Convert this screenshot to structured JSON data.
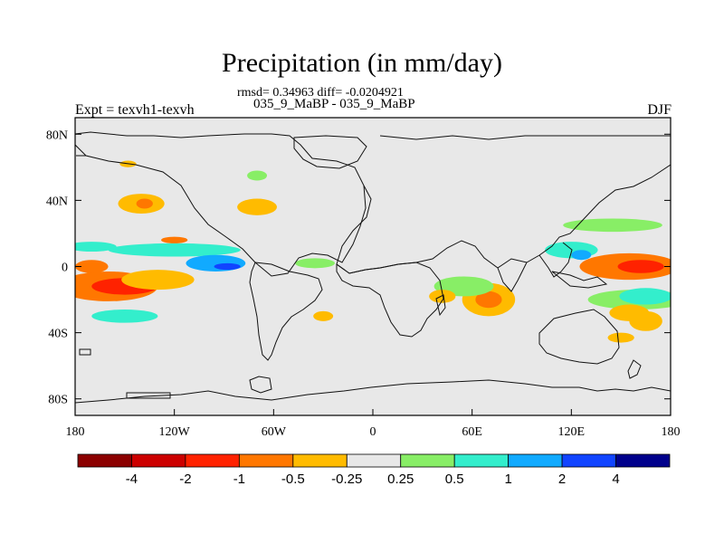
{
  "chart_data": {
    "type": "heatmap",
    "title": "Precipitation (in mm/day)",
    "stats_line": "rmsd= 0.34963 diff= -0.0204921",
    "subtitle": "035_9_MaBP - 035_9_MaBP",
    "left_label": "Expt = texvh1-texvh",
    "season": "DJF",
    "x_range": [
      -180,
      180
    ],
    "y_range": [
      -90,
      90
    ],
    "x_ticks": [
      {
        "value": -180,
        "label": "180"
      },
      {
        "value": -120,
        "label": "120W"
      },
      {
        "value": -60,
        "label": "60W"
      },
      {
        "value": 0,
        "label": "0"
      },
      {
        "value": 60,
        "label": "60E"
      },
      {
        "value": 120,
        "label": "120E"
      },
      {
        "value": 180,
        "label": "180"
      }
    ],
    "y_ticks": [
      {
        "value": 80,
        "label": "80N"
      },
      {
        "value": 40,
        "label": "40N"
      },
      {
        "value": 0,
        "label": "0"
      },
      {
        "value": -40,
        "label": "40S"
      },
      {
        "value": -80,
        "label": "80S"
      }
    ],
    "colorbar": {
      "colors": [
        "#8b0000",
        "#cc0000",
        "#ff2200",
        "#ff7700",
        "#ffbb00",
        "#e8e8e8",
        "#88ee66",
        "#33eecc",
        "#11aaff",
        "#1144ff",
        "#00008b"
      ],
      "labels": [
        "-4",
        "-2",
        "-1",
        "-0.5",
        "-0.25",
        "0.25",
        "0.5",
        "1",
        "2",
        "4"
      ]
    },
    "anomalies": [
      {
        "lon": -160,
        "lat": -12,
        "rx": 30,
        "ry": 9,
        "level": 3
      },
      {
        "lon": -150,
        "lat": -12,
        "rx": 20,
        "ry": 5,
        "level": 2
      },
      {
        "lon": -130,
        "lat": -8,
        "rx": 22,
        "ry": 6,
        "level": 4
      },
      {
        "lon": -170,
        "lat": 0,
        "rx": 10,
        "ry": 4,
        "level": 3
      },
      {
        "lon": -120,
        "lat": 10,
        "rx": 40,
        "ry": 4,
        "level": 7
      },
      {
        "lon": -95,
        "lat": 2,
        "rx": 18,
        "ry": 5,
        "level": 8
      },
      {
        "lon": -88,
        "lat": 0,
        "rx": 8,
        "ry": 2,
        "level": 9
      },
      {
        "lon": -150,
        "lat": -30,
        "rx": 20,
        "ry": 4,
        "level": 7
      },
      {
        "lon": -170,
        "lat": 12,
        "rx": 15,
        "ry": 3,
        "level": 7
      },
      {
        "lon": -140,
        "lat": 38,
        "rx": 14,
        "ry": 6,
        "level": 4
      },
      {
        "lon": -138,
        "lat": 38,
        "rx": 5,
        "ry": 3,
        "level": 3
      },
      {
        "lon": -120,
        "lat": 16,
        "rx": 8,
        "ry": 2,
        "level": 3
      },
      {
        "lon": -70,
        "lat": 36,
        "rx": 12,
        "ry": 5,
        "level": 4
      },
      {
        "lon": -70,
        "lat": 55,
        "rx": 6,
        "ry": 3,
        "level": 6
      },
      {
        "lon": -148,
        "lat": 62,
        "rx": 5,
        "ry": 2,
        "level": 4
      },
      {
        "lon": -30,
        "lat": -30,
        "rx": 6,
        "ry": 3,
        "level": 4
      },
      {
        "lon": -35,
        "lat": 2,
        "rx": 12,
        "ry": 3,
        "level": 6
      },
      {
        "lon": 70,
        "lat": -20,
        "rx": 16,
        "ry": 10,
        "level": 4
      },
      {
        "lon": 70,
        "lat": -20,
        "rx": 8,
        "ry": 5,
        "level": 3
      },
      {
        "lon": 55,
        "lat": -12,
        "rx": 18,
        "ry": 6,
        "level": 6
      },
      {
        "lon": 42,
        "lat": -18,
        "rx": 8,
        "ry": 4,
        "level": 4
      },
      {
        "lon": 155,
        "lat": 0,
        "rx": 30,
        "ry": 8,
        "level": 3
      },
      {
        "lon": 162,
        "lat": 0,
        "rx": 14,
        "ry": 4,
        "level": 2
      },
      {
        "lon": 120,
        "lat": 10,
        "rx": 16,
        "ry": 5,
        "level": 7
      },
      {
        "lon": 126,
        "lat": 7,
        "rx": 6,
        "ry": 3,
        "level": 8
      },
      {
        "lon": 145,
        "lat": 25,
        "rx": 30,
        "ry": 4,
        "level": 6
      },
      {
        "lon": 160,
        "lat": -20,
        "rx": 30,
        "ry": 6,
        "level": 6
      },
      {
        "lon": 155,
        "lat": -28,
        "rx": 12,
        "ry": 5,
        "level": 4
      },
      {
        "lon": 150,
        "lat": -43,
        "rx": 8,
        "ry": 3,
        "level": 4
      },
      {
        "lon": 165,
        "lat": -33,
        "rx": 10,
        "ry": 6,
        "level": 4
      },
      {
        "lon": 165,
        "lat": -18,
        "rx": 16,
        "ry": 5,
        "level": 7
      }
    ]
  }
}
